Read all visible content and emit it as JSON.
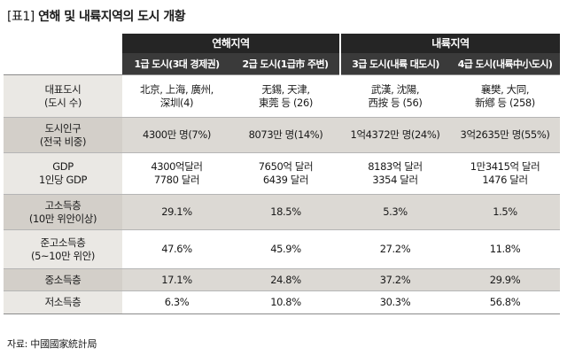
{
  "title": {
    "prefix": "[표1]",
    "text": "연해 및 내륙지역의 도시 개황"
  },
  "header": {
    "groups": [
      "연해지역",
      "내륙지역"
    ],
    "columns": [
      "1급 도시(3대 경제권)",
      "2급 도시(1급市 주변)",
      "3급 도시(내륙 대도시)",
      "4급 도시(내륙中小도시)"
    ]
  },
  "rows": [
    {
      "label": "대표도시\n(도시 수)",
      "cells": [
        "北京, 上海, 廣州,\n深圳(4)",
        "无錫, 天津,\n東莞 등 (26)",
        "武漢, 沈陽,\n西按 등 (56)",
        "襄樊, 大同,\n新鄕 등 (258)"
      ]
    },
    {
      "label": "도시인구\n(전국 비중)",
      "cells": [
        "4300만 명(7%)",
        "8073만 명(14%)",
        "1억4372만 명(24%)",
        "3억2635만 명(55%)"
      ]
    },
    {
      "label": "GDP\n1인당 GDP",
      "cells": [
        "4300억달러\n7780 달러",
        "7650억 달러\n6439 달러",
        "8183억 달러\n3354 달러",
        "1만3415억 달러\n1476 달러"
      ]
    },
    {
      "label": "고소득층\n(10만 위안이상)",
      "cells": [
        "29.1%",
        "18.5%",
        "5.3%",
        "1.5%"
      ]
    },
    {
      "label": "준고소득층\n(5~10만 위안)",
      "cells": [
        "47.6%",
        "45.9%",
        "27.2%",
        "11.8%"
      ]
    },
    {
      "label": "중소득층",
      "cells": [
        "17.1%",
        "24.8%",
        "37.2%",
        "29.9%"
      ]
    },
    {
      "label": "저소득층",
      "cells": [
        "6.3%",
        "10.8%",
        "30.3%",
        "56.8%"
      ]
    }
  ],
  "source": "자료: 中國國家統計局"
}
